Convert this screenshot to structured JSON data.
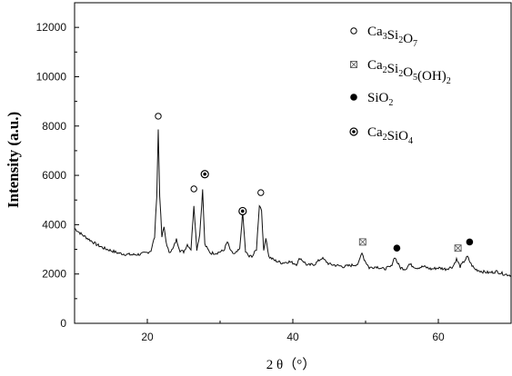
{
  "chart_data": {
    "type": "line",
    "xlabel": "2 θ（°）",
    "ylabel": "Intensity (a.u.)",
    "xlim": [
      10,
      70
    ],
    "ylim": [
      0,
      13000
    ],
    "x_ticks": [
      20,
      40,
      60
    ],
    "y_ticks": [
      0,
      2000,
      4000,
      6000,
      8000,
      10000,
      12000
    ],
    "grid": false,
    "legend_position": "top-right",
    "legend": [
      {
        "marker": "open-circle",
        "parts": [
          [
            "Ca",
            ""
          ],
          [
            "3",
            "sub"
          ],
          [
            "Si",
            ""
          ],
          [
            "2",
            "sub"
          ],
          [
            "O",
            ""
          ],
          [
            "7",
            "sub"
          ]
        ]
      },
      {
        "marker": "crossed-square",
        "parts": [
          [
            "Ca",
            ""
          ],
          [
            "2",
            "sub"
          ],
          [
            "Si",
            ""
          ],
          [
            "2",
            "sub"
          ],
          [
            "O",
            ""
          ],
          [
            "5",
            "sub"
          ],
          [
            "(OH)",
            ""
          ],
          [
            "2",
            "sub"
          ]
        ]
      },
      {
        "marker": "filled-circle",
        "parts": [
          [
            "SiO",
            ""
          ],
          [
            "2",
            "sub"
          ]
        ]
      },
      {
        "marker": "dotted-circle",
        "parts": [
          [
            "Ca",
            ""
          ],
          [
            "2",
            "sub"
          ],
          [
            "SiO",
            ""
          ],
          [
            "4",
            "sub"
          ]
        ]
      }
    ],
    "series": [
      {
        "x": [
          10,
          11,
          12,
          13,
          14,
          15,
          16,
          17,
          18,
          19,
          20,
          20.5,
          21,
          21.3,
          21.5,
          21.7,
          22,
          22.3,
          22.7,
          23,
          23.5,
          24,
          24.5,
          25,
          25.5,
          26,
          26.4,
          26.8,
          27.2,
          27.6,
          27.9,
          28.3,
          28.7,
          29.5,
          30.5,
          31,
          31.5,
          32,
          32.7,
          33.1,
          33.5,
          34,
          34.5,
          35,
          35.4,
          35.7,
          36,
          36.3,
          36.7,
          37.5,
          38.5,
          39.5,
          40.5,
          41,
          42,
          43,
          44,
          45,
          46,
          47,
          48,
          49,
          49.5,
          49.8,
          50.5,
          51.5,
          52.5,
          53.5,
          54,
          54.3,
          54.8,
          55.5,
          56,
          57,
          58,
          59,
          60,
          61,
          62,
          62.5,
          63,
          63.5,
          64,
          64.5,
          65,
          66,
          67,
          68,
          69,
          70
        ],
        "y": [
          3850,
          3600,
          3400,
          3200,
          3050,
          2950,
          2850,
          2800,
          2780,
          2800,
          2870,
          2950,
          3500,
          5200,
          7850,
          5200,
          3500,
          3900,
          3100,
          2900,
          3000,
          3400,
          2950,
          2900,
          3200,
          3000,
          4800,
          3000,
          3600,
          5400,
          3200,
          3000,
          2850,
          2850,
          2950,
          3300,
          2900,
          2800,
          3000,
          4500,
          2900,
          2700,
          2750,
          3000,
          4800,
          4600,
          2900,
          3500,
          2700,
          2550,
          2450,
          2500,
          2400,
          2650,
          2350,
          2400,
          2650,
          2400,
          2350,
          2300,
          2350,
          2400,
          2900,
          2600,
          2250,
          2300,
          2200,
          2300,
          2700,
          2500,
          2250,
          2200,
          2400,
          2250,
          2300,
          2200,
          2250,
          2200,
          2300,
          2600,
          2300,
          2500,
          2700,
          2400,
          2200,
          2100,
          2050,
          2100,
          2000,
          1950
        ]
      }
    ],
    "annotations": [
      {
        "marker": "open-circle",
        "x": 21.5,
        "y": 8400
      },
      {
        "marker": "open-circle",
        "x": 26.4,
        "y": 5450
      },
      {
        "marker": "dotted-circle",
        "x": 27.9,
        "y": 6050
      },
      {
        "marker": "dotted-circle",
        "x": 33.1,
        "y": 4550
      },
      {
        "marker": "open-circle",
        "x": 35.6,
        "y": 5300
      },
      {
        "marker": "crossed-square",
        "x": 49.6,
        "y": 3300
      },
      {
        "marker": "filled-circle",
        "x": 54.3,
        "y": 3050
      },
      {
        "marker": "crossed-square",
        "x": 62.7,
        "y": 3050
      },
      {
        "marker": "filled-circle",
        "x": 64.3,
        "y": 3300
      }
    ]
  }
}
